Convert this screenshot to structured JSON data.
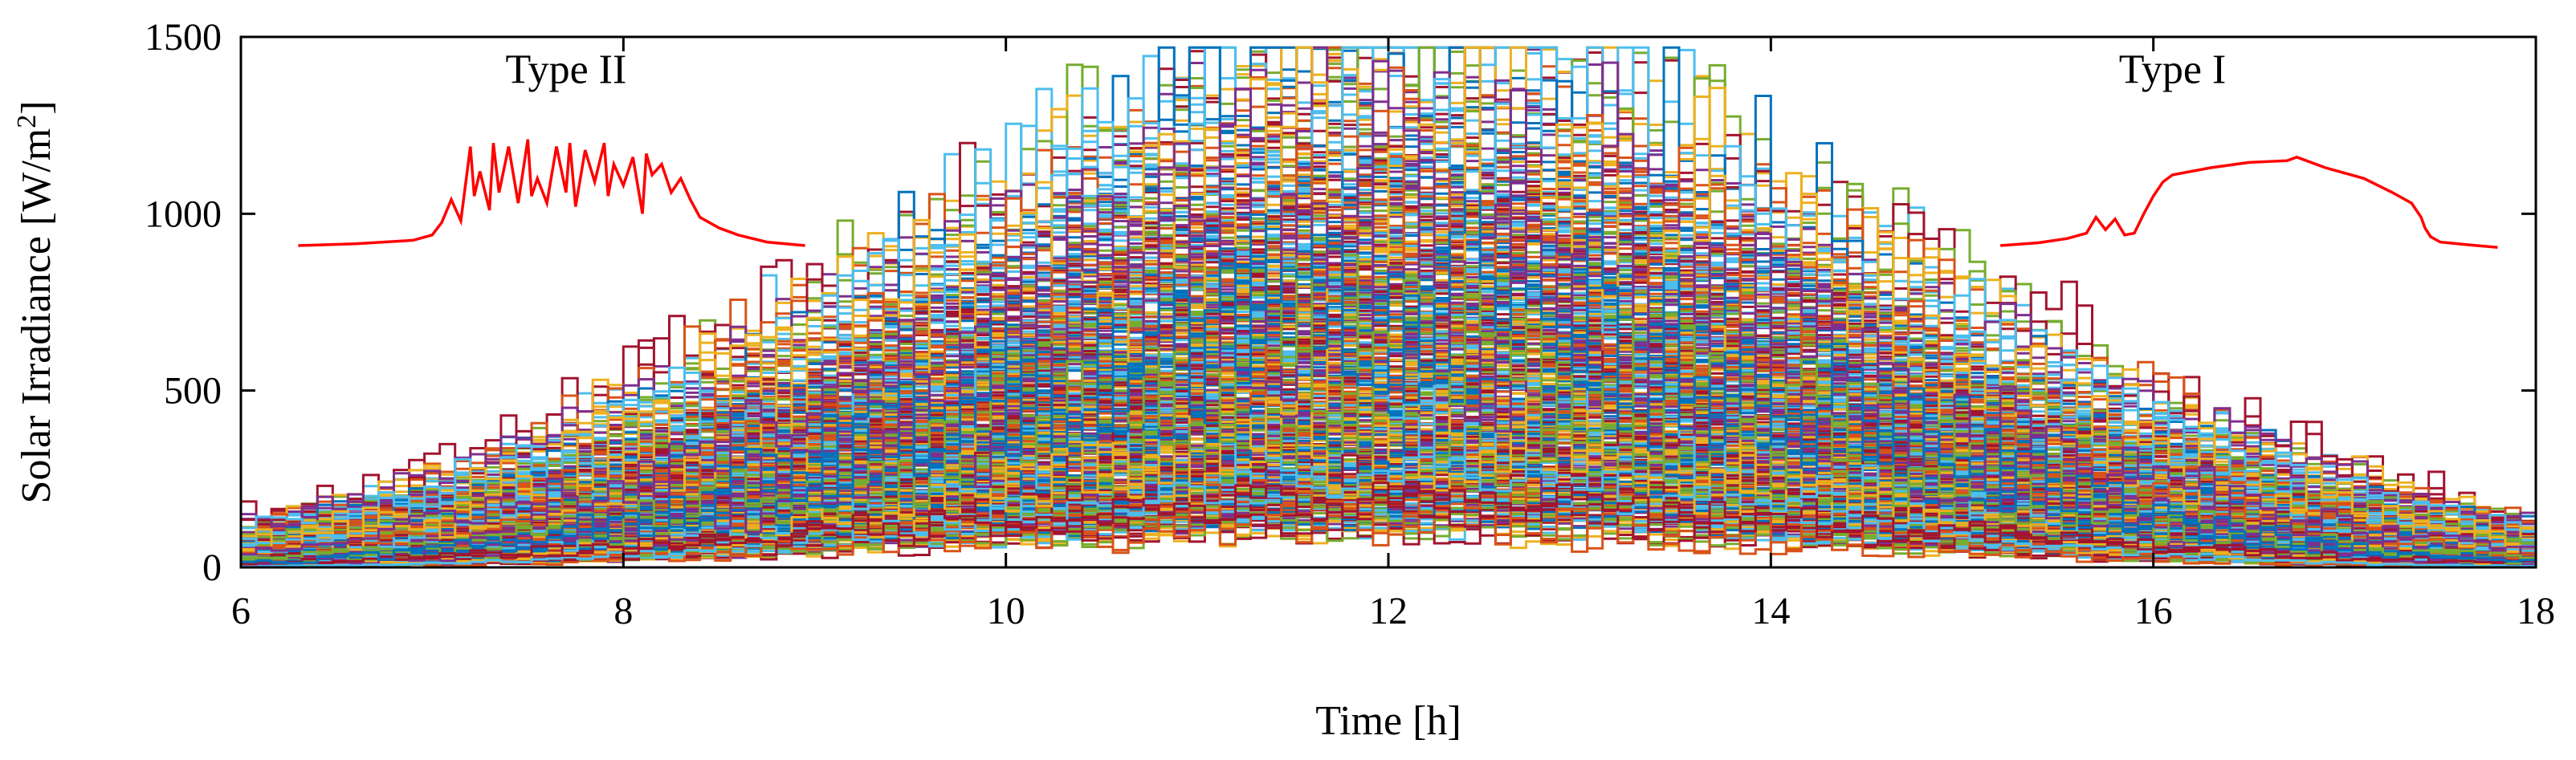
{
  "chart_data": {
    "type": "line",
    "title": "",
    "xlabel": "Time [h]",
    "ylabel": "Solar Irradiance [W/m²]",
    "ylabel_main": "Solar Irradiance [W/m",
    "ylabel_sup": "2",
    "ylabel_tail": "]",
    "xlim": [
      6,
      18
    ],
    "ylim": [
      0,
      1500
    ],
    "xticks": [
      6,
      8,
      10,
      12,
      14,
      16,
      18
    ],
    "xtick_labels": [
      "6",
      "8",
      "10",
      "12",
      "14",
      "16",
      "18"
    ],
    "yticks": [
      0,
      500,
      1000,
      1500
    ],
    "ytick_labels": [
      "0",
      "500",
      "1000",
      "1500"
    ],
    "grid": false,
    "legend": "none",
    "ensemble": {
      "description_count": 400,
      "colors": [
        "#0072bd",
        "#d95319",
        "#edb120",
        "#7e2f8e",
        "#77ac30",
        "#4dbeee",
        "#a2142f"
      ],
      "x_start": 6,
      "x_end": 18,
      "peak_time": 12,
      "max_value": 1470
    },
    "series": [
      {
        "name": "Type II",
        "color": "#ff0000",
        "label_x": 7.7,
        "label_y": 1370,
        "x": [
          6.3,
          6.6,
          6.9,
          7.0,
          7.05,
          7.1,
          7.15,
          7.2,
          7.22,
          7.25,
          7.3,
          7.32,
          7.35,
          7.4,
          7.45,
          7.5,
          7.52,
          7.55,
          7.6,
          7.65,
          7.7,
          7.72,
          7.75,
          7.8,
          7.85,
          7.9,
          7.92,
          7.95,
          8.0,
          8.05,
          8.1,
          8.12,
          8.15,
          8.2,
          8.25,
          8.3,
          8.35,
          8.4,
          8.5,
          8.6,
          8.75,
          8.95
        ],
        "y": [
          910,
          915,
          925,
          940,
          975,
          1040,
          980,
          1190,
          1050,
          1120,
          1010,
          1200,
          1060,
          1190,
          1030,
          1210,
          1050,
          1100,
          1030,
          1190,
          1060,
          1200,
          1020,
          1180,
          1090,
          1200,
          1050,
          1140,
          1080,
          1160,
          1000,
          1170,
          1110,
          1140,
          1060,
          1100,
          1040,
          990,
          960,
          940,
          920,
          910
        ],
        "x_label_ticks": []
      },
      {
        "name": "Type I",
        "color": "#ff0000",
        "label_x": 16.1,
        "label_y": 1370,
        "x": [
          15.2,
          15.4,
          15.55,
          15.65,
          15.7,
          15.75,
          15.8,
          15.85,
          15.9,
          15.95,
          16.0,
          16.05,
          16.1,
          16.3,
          16.5,
          16.7,
          16.75,
          16.9,
          17.1,
          17.25,
          17.35,
          17.4,
          17.42,
          17.45,
          17.5,
          17.65,
          17.8
        ],
        "y": [
          910,
          918,
          930,
          945,
          990,
          955,
          985,
          940,
          945,
          1000,
          1050,
          1090,
          1110,
          1130,
          1145,
          1150,
          1160,
          1130,
          1100,
          1060,
          1030,
          990,
          960,
          935,
          920,
          912,
          905
        ],
        "x_label_ticks": []
      }
    ]
  }
}
